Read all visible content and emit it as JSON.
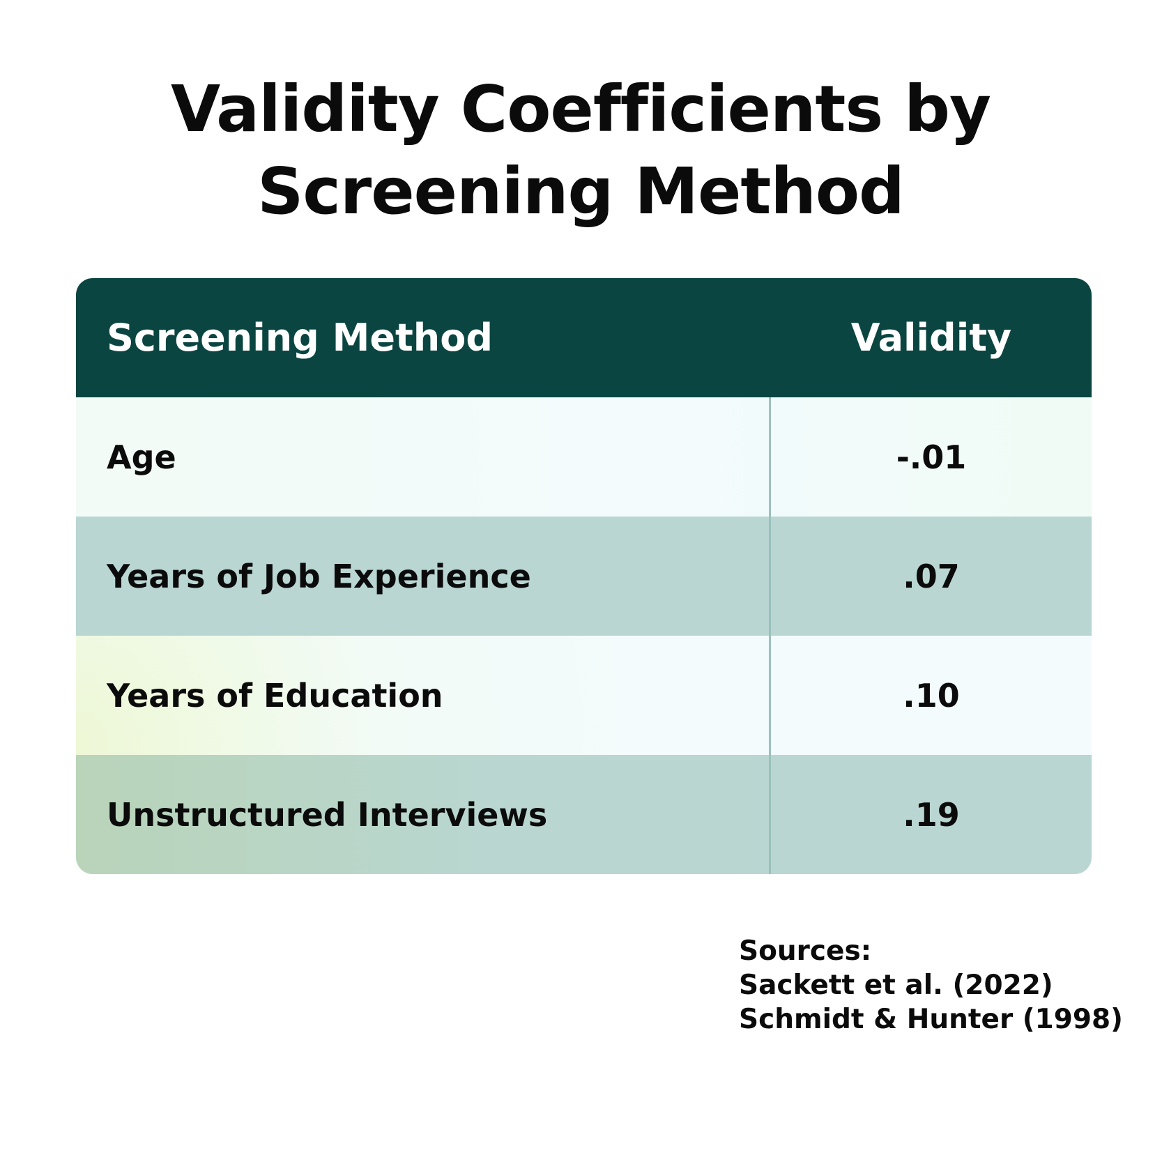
{
  "title": "Validity Coefficients by Screening Method",
  "table": {
    "header": [
      "Screening Method",
      "Validity"
    ],
    "rows": [
      [
        "Age",
        "-.01"
      ],
      [
        "Years of Job Experience",
        ".07"
      ],
      [
        "Years of Education",
        ".10"
      ],
      [
        "Unstructured Interviews",
        ".19"
      ]
    ]
  },
  "sources": {
    "label": "Sources:",
    "items": [
      "Sackett et al. (2022)",
      "Schmidt & Hunter (1998)"
    ]
  }
}
